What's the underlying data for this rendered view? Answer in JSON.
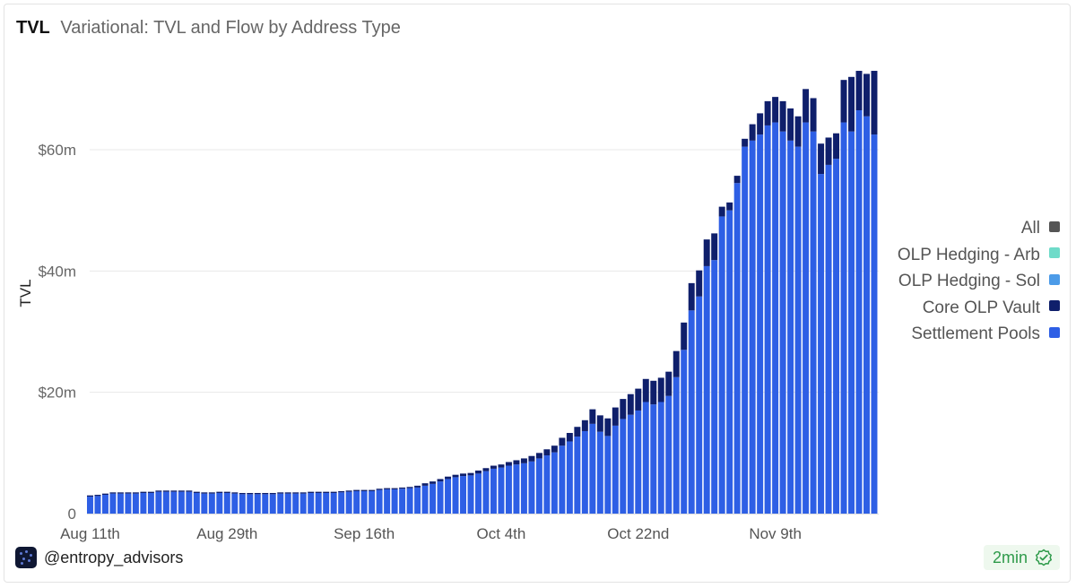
{
  "header": {
    "label": "TVL",
    "title": "Variational: TVL and Flow by Address Type"
  },
  "legend": {
    "items": [
      {
        "label": "All",
        "color": "#555555"
      },
      {
        "label": "OLP Hedging - Arb",
        "color": "#6fdbc9"
      },
      {
        "label": "OLP Hedging - Sol",
        "color": "#4c9be8"
      },
      {
        "label": "Core OLP Vault",
        "color": "#0f1f6b"
      },
      {
        "label": "Settlement Pools",
        "color": "#2e5fe5"
      }
    ]
  },
  "footer": {
    "handle": "@entropy_advisors",
    "refresh": "2min"
  },
  "chart_data": {
    "type": "bar",
    "stacked": true,
    "ylabel": "TVL",
    "ylim": [
      0,
      74
    ],
    "yticks": [
      0,
      20,
      40,
      60
    ],
    "ytick_labels": [
      "0",
      "$20m",
      "$40m",
      "$60m"
    ],
    "xtick_labels": [
      "Aug 11th",
      "Aug 29th",
      "Sep 16th",
      "Oct 4th",
      "Oct 22nd",
      "Nov 9th"
    ],
    "grid": true,
    "legend_position": "right",
    "categories_note": "daily, Aug 11th – Nov 9th",
    "series": [
      {
        "name": "Settlement Pools",
        "color": "#2e5fe5",
        "values": [
          2.8,
          2.9,
          3.1,
          3.3,
          3.3,
          3.3,
          3.3,
          3.4,
          3.4,
          3.6,
          3.6,
          3.6,
          3.6,
          3.6,
          3.4,
          3.3,
          3.3,
          3.4,
          3.4,
          3.3,
          3.2,
          3.2,
          3.2,
          3.2,
          3.2,
          3.3,
          3.3,
          3.3,
          3.3,
          3.4,
          3.4,
          3.4,
          3.4,
          3.5,
          3.6,
          3.7,
          3.7,
          3.7,
          3.9,
          4.0,
          4.0,
          4.1,
          4.2,
          4.3,
          4.6,
          4.9,
          5.3,
          5.7,
          6.0,
          6.2,
          6.3,
          6.6,
          7.0,
          7.4,
          7.6,
          7.9,
          8.1,
          8.3,
          8.6,
          9.1,
          9.6,
          10.1,
          11.2,
          11.9,
          12.7,
          13.6,
          14.8,
          13.5,
          12.8,
          14.5,
          15.6,
          16.3,
          17.0,
          18.4,
          18.0,
          18.4,
          19.4,
          22.5,
          27.0,
          33.5,
          35.8,
          40.8,
          41.8,
          49.0,
          50.0,
          54.5,
          60.5,
          61.5,
          62.5,
          64.0,
          64.5,
          63.0,
          61.5,
          60.5,
          64.5,
          63.0,
          56.0,
          57.5,
          58.5,
          64.5,
          63.0,
          66.5,
          65.5,
          62.5
        ]
      },
      {
        "name": "Core OLP Vault",
        "color": "#0f1f6b",
        "values": [
          0.2,
          0.2,
          0.2,
          0.2,
          0.2,
          0.2,
          0.2,
          0.2,
          0.2,
          0.2,
          0.2,
          0.2,
          0.2,
          0.2,
          0.2,
          0.2,
          0.2,
          0.2,
          0.2,
          0.2,
          0.2,
          0.2,
          0.2,
          0.2,
          0.2,
          0.2,
          0.2,
          0.2,
          0.2,
          0.2,
          0.2,
          0.2,
          0.2,
          0.2,
          0.2,
          0.2,
          0.2,
          0.2,
          0.2,
          0.2,
          0.2,
          0.2,
          0.2,
          0.3,
          0.4,
          0.4,
          0.4,
          0.4,
          0.4,
          0.4,
          0.4,
          0.5,
          0.5,
          0.5,
          0.5,
          0.6,
          0.7,
          0.8,
          0.9,
          0.9,
          1.0,
          1.1,
          1.3,
          1.4,
          1.6,
          1.8,
          2.4,
          2.7,
          2.9,
          3.0,
          3.3,
          3.4,
          3.6,
          3.8,
          3.9,
          4.0,
          4.0,
          4.3,
          4.5,
          4.5,
          4.3,
          4.4,
          4.4,
          1.6,
          1.3,
          1.2,
          1.3,
          2.7,
          3.5,
          4.0,
          4.2,
          5.0,
          5.3,
          5.0,
          5.5,
          5.5,
          5.0,
          4.5,
          4.2,
          7.0,
          9.0,
          6.5,
          7.0,
          10.5
        ]
      }
    ]
  }
}
